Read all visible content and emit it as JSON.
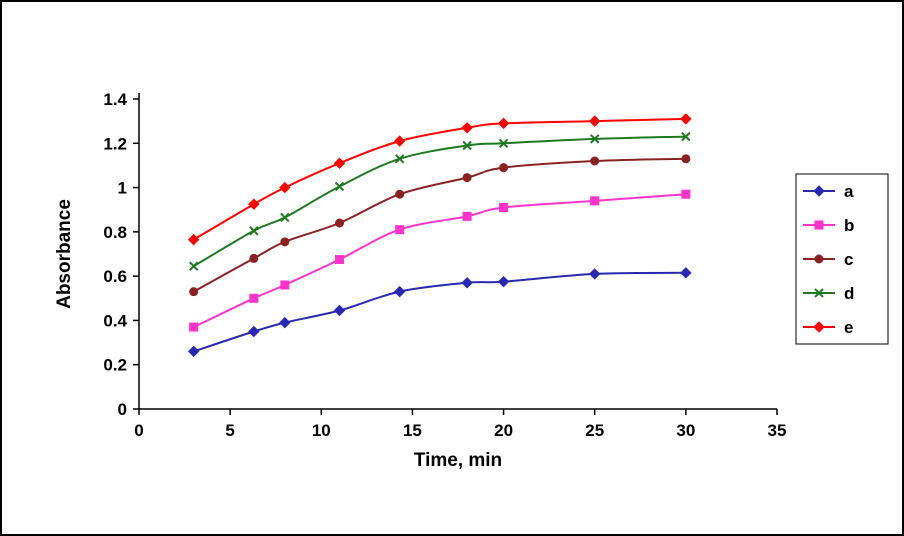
{
  "figure": {
    "background": "#FFFFFF",
    "border_color": "#000000",
    "axis_color": "#000000",
    "text_color": "#000000"
  },
  "chart_data": {
    "type": "line",
    "title": "",
    "xlabel": "Time, min",
    "ylabel": "Absorbance",
    "xlim": [
      0,
      35
    ],
    "ylim": [
      0,
      1.4
    ],
    "x_tick_labels": [
      "0",
      "5",
      "10",
      "15",
      "20",
      "25",
      "30",
      "35"
    ],
    "x_tick_values": [
      0,
      5,
      10,
      15,
      20,
      25,
      30,
      35
    ],
    "y_tick_labels": [
      "0",
      "0.2",
      "0.4",
      "0.6",
      "0.8",
      "1",
      "1.2",
      "1.4"
    ],
    "y_tick_values": [
      0,
      0.2,
      0.4,
      0.6,
      0.8,
      1,
      1.2,
      1.4
    ],
    "grid": false,
    "legend_position": "right",
    "x": [
      3,
      6.3,
      8,
      11,
      14.3,
      18,
      20,
      25,
      30
    ],
    "series": [
      {
        "name": "a",
        "color": "#2828B0",
        "marker": "diamond",
        "values": [
          0.26,
          0.35,
          0.39,
          0.445,
          0.53,
          0.57,
          0.575,
          0.61,
          0.615
        ]
      },
      {
        "name": "b",
        "color": "#FF33CC",
        "marker": "square",
        "values": [
          0.37,
          0.5,
          0.56,
          0.675,
          0.81,
          0.87,
          0.91,
          0.94,
          0.97
        ]
      },
      {
        "name": "c",
        "color": "#8B2222",
        "marker": "circle",
        "values": [
          0.53,
          0.68,
          0.755,
          0.84,
          0.97,
          1.045,
          1.09,
          1.12,
          1.13
        ]
      },
      {
        "name": "d",
        "color": "#1F7A1F",
        "marker": "x",
        "values": [
          0.645,
          0.805,
          0.865,
          1.005,
          1.13,
          1.19,
          1.2,
          1.22,
          1.23
        ]
      },
      {
        "name": "e",
        "color": "#FF0000",
        "marker": "diamond",
        "values": [
          0.765,
          0.925,
          1.0,
          1.11,
          1.21,
          1.27,
          1.29,
          1.3,
          1.31
        ]
      }
    ]
  }
}
